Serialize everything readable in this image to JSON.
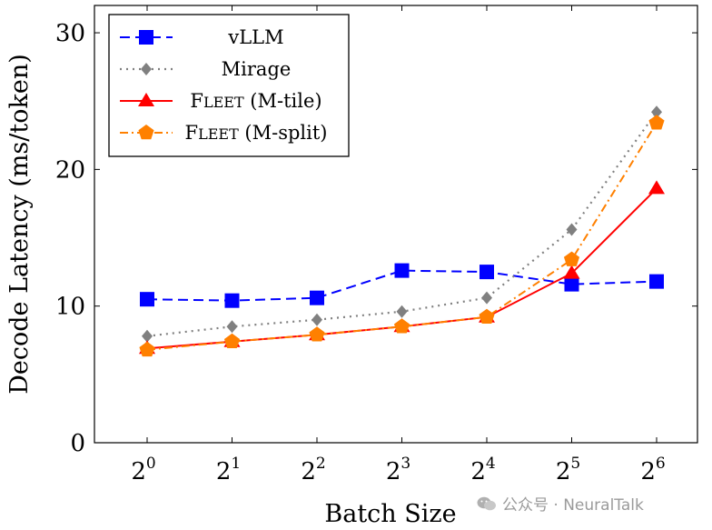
{
  "chart_data": {
    "type": "line",
    "title": "",
    "xlabel": "Batch Size",
    "ylabel": "Decode Latency (ms/token)",
    "x_tick_base": "2",
    "x_exponents": [
      "0",
      "1",
      "2",
      "3",
      "4",
      "5",
      "6"
    ],
    "y_ticks": [
      "0",
      "10",
      "20",
      "30"
    ],
    "ylim": [
      0,
      32
    ],
    "grid": false,
    "legend_position": "top-left",
    "series": [
      {
        "name": "vLLM",
        "color": "#0000ff",
        "marker": "square",
        "dash": "dashed",
        "values": [
          10.5,
          10.4,
          10.6,
          12.6,
          12.5,
          11.6,
          11.8
        ]
      },
      {
        "name": "Mirage",
        "color": "#808080",
        "marker": "diamond",
        "dash": "dotted",
        "values": [
          7.8,
          8.5,
          9.0,
          9.6,
          10.6,
          15.6,
          24.2
        ]
      },
      {
        "name": "Fleet (M-tile)",
        "color": "#ff0000",
        "marker": "triangle",
        "dash": "solid",
        "values": [
          6.9,
          7.4,
          7.9,
          8.5,
          9.2,
          12.4,
          18.6
        ]
      },
      {
        "name": "Fleet (M-split)",
        "color": "#ff8000",
        "marker": "pentagon",
        "dash": "dashdot",
        "values": [
          6.8,
          7.4,
          7.9,
          8.5,
          9.2,
          13.4,
          23.4
        ]
      }
    ]
  },
  "watermark": {
    "text": "公众号 · NeuralTalk"
  }
}
